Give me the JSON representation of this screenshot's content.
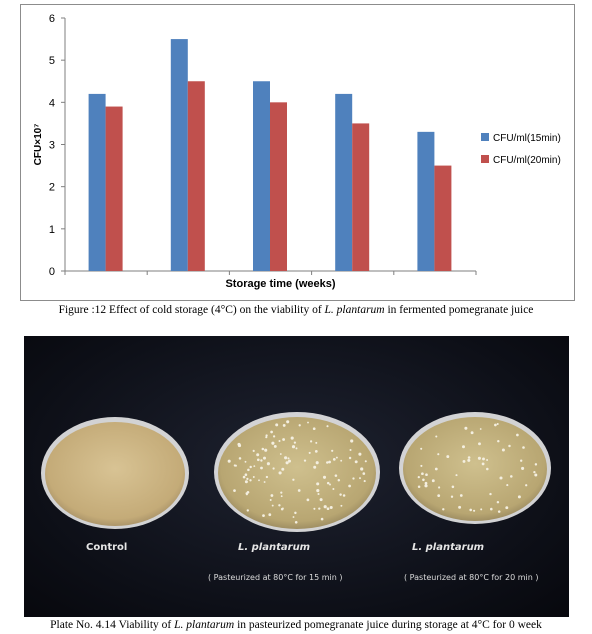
{
  "chart_data": {
    "type": "bar",
    "title": "",
    "xlabel": "Storage time (weeks)",
    "ylabel": "CFU×10⁷",
    "ylim": [
      0,
      6
    ],
    "yticks": [
      "0",
      "1",
      "2",
      "3",
      "4",
      "5",
      "6"
    ],
    "categories": [
      "",
      "",
      "",
      "",
      ""
    ],
    "series": [
      {
        "name": "CFU/ml(15min)",
        "color": "#4f81bd",
        "values": [
          4.2,
          5.5,
          4.5,
          4.2,
          3.3
        ]
      },
      {
        "name": "CFU/ml(20min)",
        "color": "#c0504d",
        "values": [
          3.9,
          4.5,
          4.0,
          3.5,
          2.5
        ]
      }
    ],
    "legend_position": "right",
    "grid": false
  },
  "figure_caption": {
    "prefix": "Figure :12 Effect of cold storage (4°C) on the viability of ",
    "species": "L. plantarum",
    "suffix": " in fermented pomegranate juice"
  },
  "plate": {
    "dishes": [
      {
        "label": "Control",
        "sublabel": ""
      },
      {
        "label": "L. plantarum",
        "sublabel": "( Pasteurized at 80°C for 15 min )"
      },
      {
        "label": "L. plantarum",
        "sublabel": "( Pasteurized at 80°C for 20 min )"
      }
    ],
    "caption": {
      "prefix": "Plate No. 4.14 Viability of ",
      "species": "L. plantarum",
      "suffix": " in pasteurized pomegranate juice during storage at 4°C for 0 week"
    }
  }
}
